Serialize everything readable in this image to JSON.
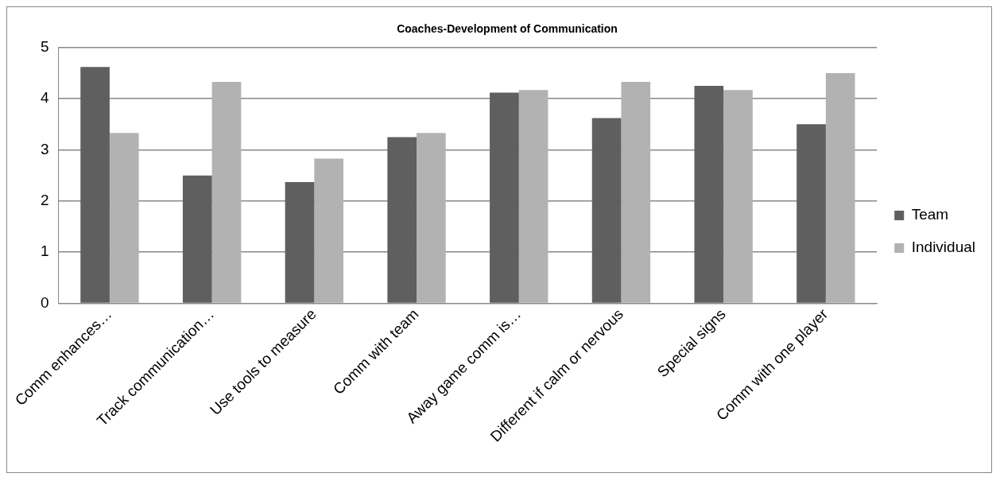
{
  "chart_data": {
    "type": "bar",
    "title": "Coaches-Development of Communication",
    "categories": [
      "Comm enhances…",
      "Track communication…",
      "Use tools to measure",
      "Comm with team",
      "Away game comm is…",
      "Different if calm or nervous",
      "Special signs",
      "Comm with one player"
    ],
    "series": [
      {
        "name": "Team",
        "color": "#5f5f5f",
        "values": [
          4.62,
          2.5,
          2.37,
          3.25,
          4.12,
          3.62,
          4.25,
          3.5
        ]
      },
      {
        "name": "Individual",
        "color": "#b2b2b2",
        "values": [
          3.33,
          4.33,
          2.83,
          3.33,
          4.17,
          4.33,
          4.17,
          4.5
        ]
      }
    ],
    "ylim": [
      0,
      5
    ],
    "yticks": [
      0,
      1,
      2,
      3,
      4,
      5
    ],
    "grid": "y",
    "legend": "right"
  }
}
